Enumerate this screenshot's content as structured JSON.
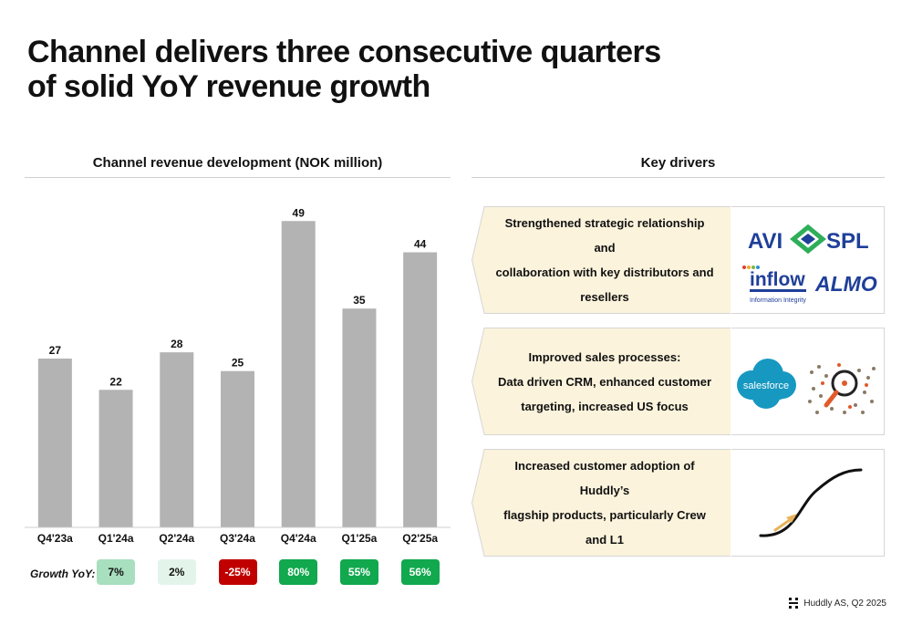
{
  "title": {
    "line1": "Channel delivers three consecutive quarters",
    "line2": "of solid YoY revenue growth"
  },
  "chart_header": "Channel revenue development (NOK million)",
  "drivers_header": "Key drivers",
  "chart_data": {
    "type": "bar",
    "title": "Channel revenue development (NOK million)",
    "categories": [
      "Q4'23a",
      "Q1'24a",
      "Q2'24a",
      "Q3'24a",
      "Q4'24a",
      "Q1'25a",
      "Q2'25a"
    ],
    "values": [
      27,
      22,
      28,
      25,
      49,
      35,
      44
    ],
    "ylim": [
      0,
      54
    ],
    "grid": false,
    "bar_color": "#b3b3b3"
  },
  "growth": {
    "label": "Growth YoY:",
    "items": [
      {
        "value": "7%",
        "bg": "#a8dfbe",
        "fg": "#111111"
      },
      {
        "value": "2%",
        "bg": "#e3f5ea",
        "fg": "#111111"
      },
      {
        "value": "-25%",
        "bg": "#c00000",
        "fg": "#ffffff"
      },
      {
        "value": "80%",
        "bg": "#11a84e",
        "fg": "#ffffff"
      },
      {
        "value": "55%",
        "bg": "#11a84e",
        "fg": "#ffffff"
      },
      {
        "value": "56%",
        "bg": "#11a84e",
        "fg": "#ffffff"
      }
    ]
  },
  "drivers": [
    {
      "lines": [
        "Strengthened strategic relationship and",
        "collaboration with key distributors and",
        "resellers"
      ],
      "logos": {
        "avi": "AVI",
        "spl": "SPL",
        "inflow": "inflow",
        "inflow_sub": "Information Integrity",
        "almo": "ALMO"
      }
    },
    {
      "lines": [
        "Improved sales processes:",
        "Data driven CRM, enhanced customer",
        "targeting, increased US focus"
      ],
      "logos": {
        "salesforce": "salesforce",
        "people_icon": "magnifier-crowd-icon"
      }
    },
    {
      "lines": [
        "Increased customer adoption of Huddly’s",
        "flagship products, particularly Crew and L1"
      ],
      "logos": {
        "curve_icon": "s-curve-growth-icon"
      }
    }
  ],
  "footer": "Huddly AS, Q2 2025",
  "colors": {
    "driver_bg": "#fbf3dc",
    "salesforce": "#1798c1",
    "avi_blue": "#1f3f99",
    "almo_blue": "#1f3f99",
    "arrow": "#e8b35a"
  }
}
